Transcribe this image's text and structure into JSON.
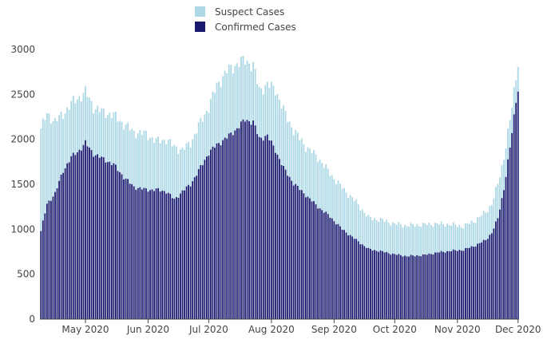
{
  "chart_data": {
    "type": "bar",
    "stacked": true,
    "title": "",
    "xlabel": "",
    "ylabel": "",
    "ylim": [
      0,
      3000
    ],
    "ytick_values": [
      0,
      500,
      1000,
      1500,
      2000,
      2500,
      3000
    ],
    "ytick_labels": [
      "0",
      "500",
      "1000",
      "1500",
      "2000",
      "2500",
      "3000"
    ],
    "x_start": "2020-04-09",
    "x_end": "2020-12-01",
    "xtick_dates": [
      "2020-05-01",
      "2020-06-01",
      "2020-07-01",
      "2020-08-01",
      "2020-09-01",
      "2020-10-01",
      "2020-11-01",
      "2020-12-01"
    ],
    "xtick_labels": [
      "May 2020",
      "Jun 2020",
      "Jul 2020",
      "Aug 2020",
      "Sep 2020",
      "Oct 2020",
      "Nov 2020",
      "Dec 2020"
    ],
    "grid": false,
    "legend_placement": "top-center",
    "series": [
      {
        "name": "Suspect Cases",
        "color": "#add8e6"
      },
      {
        "name": "Confirmed Cases",
        "color": "#191970"
      }
    ],
    "anchors": {
      "confirmed": [
        [
          "2020-04-09",
          980
        ],
        [
          "2020-04-12",
          1280
        ],
        [
          "2020-04-16",
          1400
        ],
        [
          "2020-04-20",
          1650
        ],
        [
          "2020-04-24",
          1800
        ],
        [
          "2020-04-28",
          1880
        ],
        [
          "2020-05-01",
          1960
        ],
        [
          "2020-05-05",
          1840
        ],
        [
          "2020-05-10",
          1780
        ],
        [
          "2020-05-15",
          1720
        ],
        [
          "2020-05-20",
          1580
        ],
        [
          "2020-05-25",
          1470
        ],
        [
          "2020-05-31",
          1440
        ],
        [
          "2020-06-05",
          1440
        ],
        [
          "2020-06-10",
          1420
        ],
        [
          "2020-06-14",
          1330
        ],
        [
          "2020-06-18",
          1420
        ],
        [
          "2020-06-22",
          1500
        ],
        [
          "2020-06-26",
          1650
        ],
        [
          "2020-07-01",
          1850
        ],
        [
          "2020-07-05",
          1940
        ],
        [
          "2020-07-10",
          2020
        ],
        [
          "2020-07-15",
          2120
        ],
        [
          "2020-07-19",
          2220
        ],
        [
          "2020-07-23",
          2190
        ],
        [
          "2020-07-26",
          2010
        ],
        [
          "2020-07-30",
          2040
        ],
        [
          "2020-08-03",
          1880
        ],
        [
          "2020-08-07",
          1680
        ],
        [
          "2020-08-12",
          1510
        ],
        [
          "2020-08-18",
          1380
        ],
        [
          "2020-08-24",
          1250
        ],
        [
          "2020-08-30",
          1140
        ],
        [
          "2020-09-05",
          1000
        ],
        [
          "2020-09-12",
          880
        ],
        [
          "2020-09-18",
          780
        ],
        [
          "2020-09-25",
          750
        ],
        [
          "2020-10-01",
          720
        ],
        [
          "2020-10-07",
          700
        ],
        [
          "2020-10-15",
          710
        ],
        [
          "2020-10-22",
          740
        ],
        [
          "2020-10-29",
          760
        ],
        [
          "2020-11-04",
          770
        ],
        [
          "2020-11-10",
          820
        ],
        [
          "2020-11-15",
          880
        ],
        [
          "2020-11-18",
          960
        ],
        [
          "2020-11-21",
          1120
        ],
        [
          "2020-11-24",
          1450
        ],
        [
          "2020-11-27",
          1900
        ],
        [
          "2020-11-30",
          2430
        ],
        [
          "2020-12-01",
          2570
        ]
      ],
      "total": [
        [
          "2020-04-09",
          2120
        ],
        [
          "2020-04-12",
          2280
        ],
        [
          "2020-04-16",
          2200
        ],
        [
          "2020-04-20",
          2280
        ],
        [
          "2020-04-24",
          2400
        ],
        [
          "2020-04-28",
          2470
        ],
        [
          "2020-05-01",
          2530
        ],
        [
          "2020-05-05",
          2360
        ],
        [
          "2020-05-10",
          2300
        ],
        [
          "2020-05-15",
          2270
        ],
        [
          "2020-05-20",
          2170
        ],
        [
          "2020-05-25",
          2080
        ],
        [
          "2020-05-31",
          2060
        ],
        [
          "2020-06-05",
          1980
        ],
        [
          "2020-06-10",
          2000
        ],
        [
          "2020-06-14",
          1920
        ],
        [
          "2020-06-18",
          1880
        ],
        [
          "2020-06-22",
          1960
        ],
        [
          "2020-06-26",
          2150
        ],
        [
          "2020-07-01",
          2360
        ],
        [
          "2020-07-05",
          2600
        ],
        [
          "2020-07-10",
          2760
        ],
        [
          "2020-07-15",
          2840
        ],
        [
          "2020-07-19",
          2880
        ],
        [
          "2020-07-23",
          2820
        ],
        [
          "2020-07-26",
          2550
        ],
        [
          "2020-07-30",
          2610
        ],
        [
          "2020-08-03",
          2560
        ],
        [
          "2020-08-07",
          2320
        ],
        [
          "2020-08-12",
          2100
        ],
        [
          "2020-08-18",
          1920
        ],
        [
          "2020-08-24",
          1800
        ],
        [
          "2020-08-30",
          1620
        ],
        [
          "2020-09-05",
          1460
        ],
        [
          "2020-09-12",
          1300
        ],
        [
          "2020-09-18",
          1130
        ],
        [
          "2020-09-25",
          1100
        ],
        [
          "2020-10-01",
          1060
        ],
        [
          "2020-10-07",
          1040
        ],
        [
          "2020-10-15",
          1050
        ],
        [
          "2020-10-22",
          1060
        ],
        [
          "2020-10-29",
          1050
        ],
        [
          "2020-11-04",
          1030
        ],
        [
          "2020-11-10",
          1100
        ],
        [
          "2020-11-15",
          1190
        ],
        [
          "2020-11-18",
          1280
        ],
        [
          "2020-11-21",
          1500
        ],
        [
          "2020-11-24",
          1800
        ],
        [
          "2020-11-27",
          2200
        ],
        [
          "2020-11-30",
          2700
        ],
        [
          "2020-12-01",
          2880
        ]
      ]
    }
  }
}
